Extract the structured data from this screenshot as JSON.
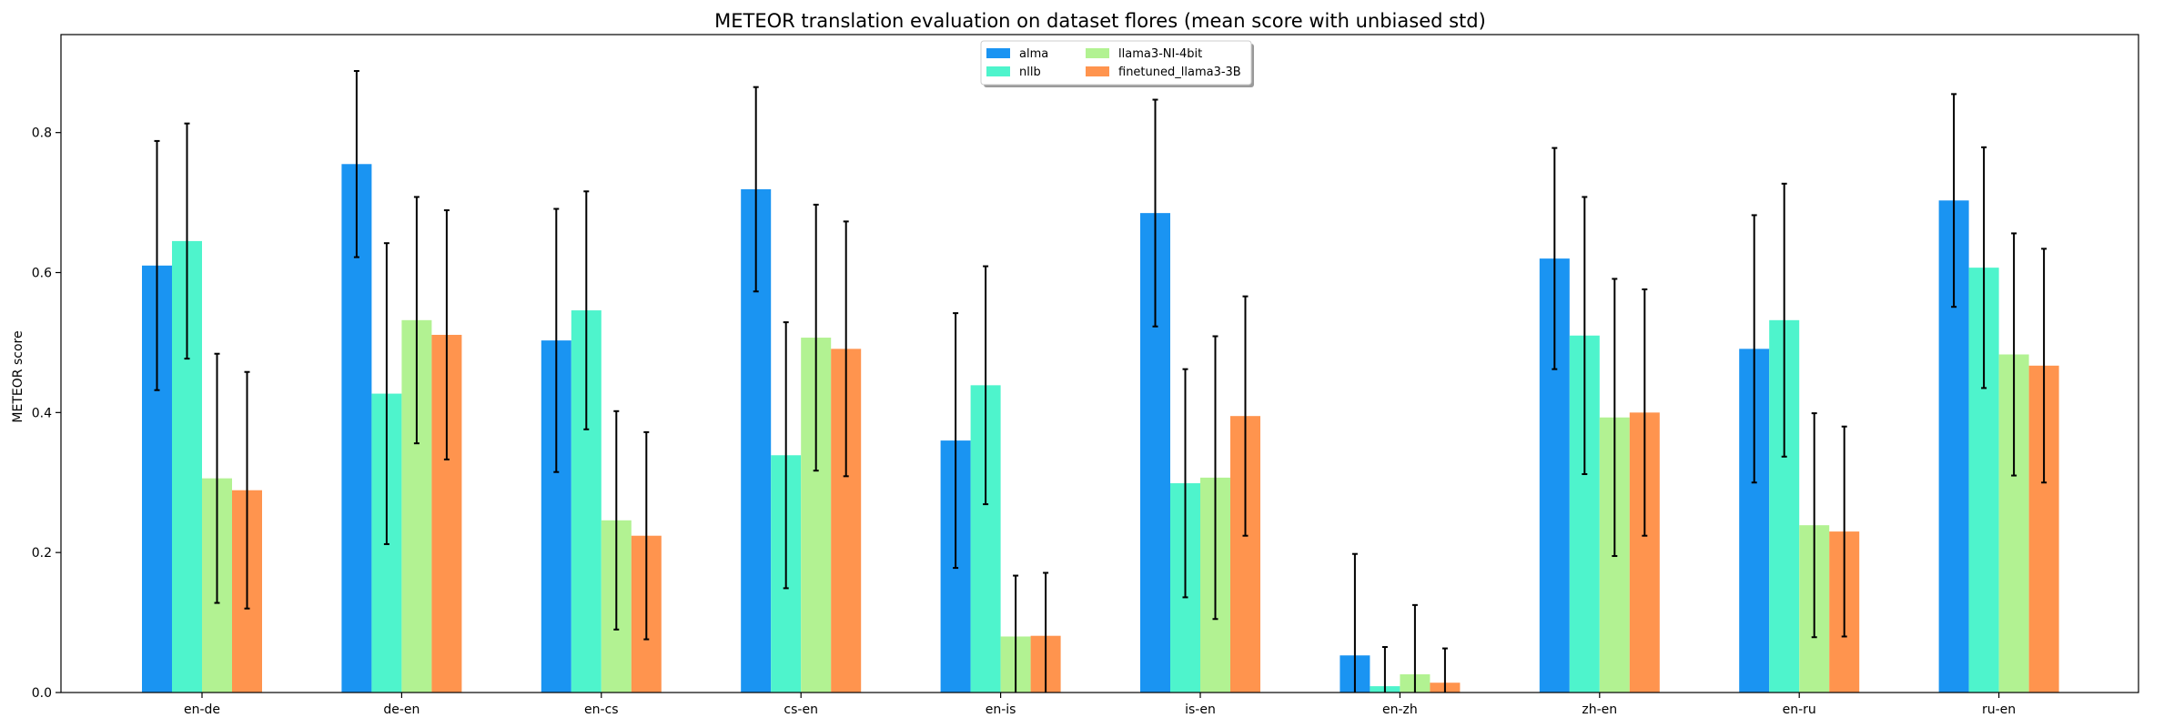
{
  "chart_data": {
    "type": "bar",
    "title": "METEOR translation evaluation on dataset flores (mean score with unbiased std)",
    "xlabel": "",
    "ylabel": "METEOR score",
    "ylim": [
      0,
      0.94
    ],
    "yticks": [
      "0.0",
      "0.2",
      "0.4",
      "0.6",
      "0.8"
    ],
    "legend_position": "upper center",
    "grid": false,
    "categories": [
      "en-de",
      "de-en",
      "en-cs",
      "cs-en",
      "en-is",
      "is-en",
      "en-zh",
      "zh-en",
      "en-ru",
      "ru-en"
    ],
    "series": [
      {
        "name": "alma",
        "color": "#1a94f2",
        "values": [
          0.61,
          0.755,
          0.503,
          0.719,
          0.36,
          0.685,
          0.053,
          0.62,
          0.491,
          0.703
        ],
        "std": [
          0.178,
          0.133,
          0.188,
          0.146,
          0.182,
          0.162,
          0.145,
          0.158,
          0.191,
          0.152
        ]
      },
      {
        "name": "nllb",
        "color": "#4ef4cc",
        "values": [
          0.645,
          0.427,
          0.546,
          0.339,
          0.439,
          0.299,
          0.009,
          0.51,
          0.532,
          0.607
        ],
        "std": [
          0.168,
          0.215,
          0.17,
          0.19,
          0.17,
          0.163,
          0.056,
          0.198,
          0.195,
          0.172
        ]
      },
      {
        "name": "llama3-NI-4bit",
        "color": "#b2f292",
        "values": [
          0.306,
          0.532,
          0.246,
          0.507,
          0.08,
          0.307,
          0.026,
          0.393,
          0.239,
          0.483
        ],
        "std": [
          0.178,
          0.176,
          0.156,
          0.19,
          0.087,
          0.202,
          0.099,
          0.198,
          0.16,
          0.173
        ]
      },
      {
        "name": "finetuned_llama3-3B",
        "color": "#ff944e",
        "values": [
          0.289,
          0.511,
          0.224,
          0.491,
          0.081,
          0.395,
          0.014,
          0.4,
          0.23,
          0.467
        ],
        "std": [
          0.169,
          0.178,
          0.148,
          0.182,
          0.09,
          0.171,
          0.049,
          0.176,
          0.15,
          0.167
        ]
      }
    ]
  }
}
